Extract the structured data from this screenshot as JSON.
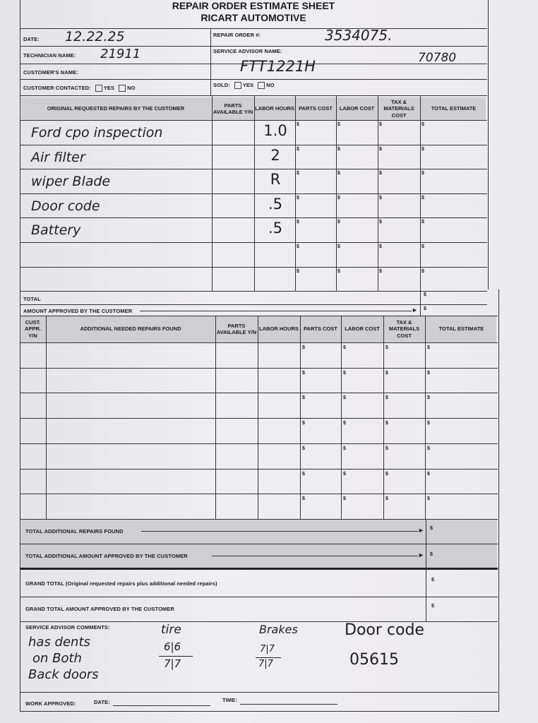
{
  "form": {
    "title": "REPAIR ORDER ESTIMATE SHEET",
    "company": "RICART AUTOMOTIVE",
    "date_label": "DATE:",
    "date_value": "12.22.25",
    "repair_order_label": "REPAIR ORDER #:",
    "repair_order_value": "3534075.",
    "technician_label": "TECHNICIAN NAME:",
    "technician_value": "21911",
    "service_advisor_label": "SERVICE ADVISOR NAME:",
    "service_advisor_value": "FTT1221H",
    "service_advisor_extra": "70780",
    "customer_name_label": "CUSTOMER'S NAME:",
    "customer_contacted_label": "CUSTOMER CONTACTED:",
    "sold_label": "SOLD:",
    "yes_label": "YES",
    "no_label": "NO"
  },
  "original_table": {
    "headers": [
      "ORIGINAL REQUESTED REPAIRS BY THE CUSTOMER",
      "PARTS AVAILABLE Y/N",
      "LABOR HOURS",
      "PARTS COST",
      "LABOR COST",
      "TAX & MATERIALS COST",
      "TOTAL ESTIMATE"
    ],
    "rows": [
      {
        "repair": "Ford cpo inspection",
        "labor_hours": "1.0"
      },
      {
        "repair": "Air filter",
        "labor_hours": "2"
      },
      {
        "repair": "wiper Blade",
        "labor_hours": "R"
      },
      {
        "repair": "Door code",
        "labor_hours": ".5"
      },
      {
        "repair": "Battery",
        "labor_hours": ".5"
      },
      {
        "repair": "",
        "labor_hours": ""
      },
      {
        "repair": "",
        "labor_hours": ""
      }
    ],
    "currency": "$",
    "total_label": "TOTAL",
    "approved_label": "AMOUNT APPROVED BY THE CUSTOMER"
  },
  "additional_table": {
    "headers": [
      "CUST. APPR. Y/N",
      "ADDITIONAL NEEDED REPAIRS FOUND",
      "PARTS AVAILABLE Y/N",
      "LABOR HOURS",
      "PARTS COST",
      "LABOR COST",
      "TAX & MATERIALS COST",
      "TOTAL ESTIMATE"
    ],
    "row_count": 7,
    "total_label": "TOTAL ADDITIONAL REPAIRS FOUND",
    "approved_label": "TOTAL ADDITIONAL AMOUNT APPROVED BY THE CUSTOMER"
  },
  "grand": {
    "total_label": "GRAND TOTAL (Original requested repairs plus additional needed repairs)",
    "approved_label": "GRAND TOTAL AMOUNT APPROVED BY THE CUSTOMER"
  },
  "comments": {
    "label": "SERVICE ADVISOR COMMENTS:",
    "note_lines": [
      "has dents",
      "on Both",
      "Back doors"
    ],
    "tires_label": "tire",
    "tires_top": "6|6",
    "tires_bottom": "7|7",
    "brakes_label": "Brakes",
    "brakes_top": "7|7",
    "brakes_bottom": "7|7",
    "door_code_label": "Door code",
    "door_code_value": "05615"
  },
  "footer": {
    "work_approved_label": "WORK APPROVED:",
    "date_label": "DATE:",
    "time_label": "TIME:"
  }
}
